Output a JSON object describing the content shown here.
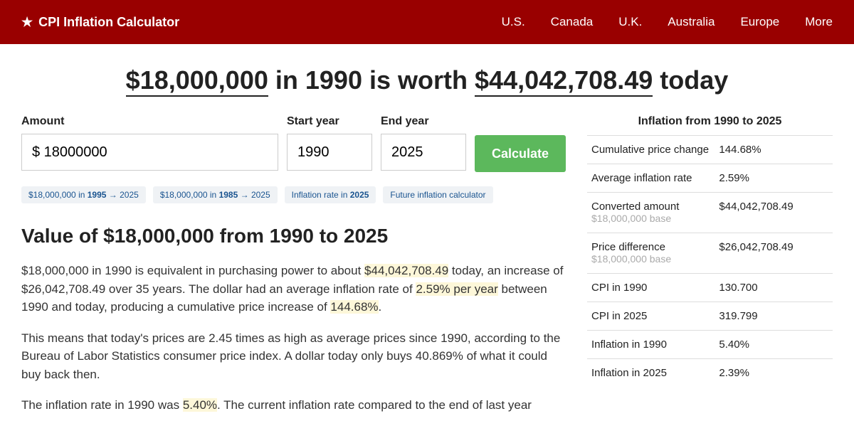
{
  "header": {
    "logo_text": "CPI Inflation Calculator",
    "nav": [
      "U.S.",
      "Canada",
      "U.K.",
      "Australia",
      "Europe",
      "More"
    ]
  },
  "title": {
    "amount_from": "$18,000,000",
    "year_from": "in 1990",
    "middle": "is worth",
    "amount_to": "$44,042,708.49",
    "suffix": "today"
  },
  "form": {
    "amount_label": "Amount",
    "amount_value": "$ 18000000",
    "start_label": "Start year",
    "start_value": "1990",
    "end_label": "End year",
    "end_value": "2025",
    "button": "Calculate"
  },
  "chips": {
    "c1_pre": "$18,000,000 in ",
    "c1_bold": "1995",
    "c1_post": " → 2025",
    "c2_pre": "$18,000,000 in ",
    "c2_bold": "1985",
    "c2_post": " → 2025",
    "c3_pre": "Inflation rate in ",
    "c3_bold": "2025",
    "c4": "Future inflation calculator"
  },
  "section": {
    "heading": "Value of $18,000,000 from 1990 to 2025",
    "p1_a": "$18,000,000 in 1990 is equivalent in purchasing power to about ",
    "p1_hl1": "$44,042,708.49",
    "p1_b": " today, an increase of $26,042,708.49 over 35 years. The dollar had an average inflation rate of ",
    "p1_hl2": "2.59% per year",
    "p1_c": " between 1990 and today, producing a cumulative price increase of ",
    "p1_hl3": "144.68%",
    "p1_d": ".",
    "p2": "This means that today's prices are 2.45 times as high as average prices since 1990, according to the Bureau of Labor Statistics consumer price index. A dollar today only buys 40.869% of what it could buy back then.",
    "p3_a": "The inflation rate in 1990 was ",
    "p3_hl1": "5.40%",
    "p3_b": ". The current inflation rate compared to the end of last year"
  },
  "sidebar": {
    "title": "Inflation from 1990 to 2025",
    "rows": [
      {
        "label": "Cumulative price change",
        "sub": "",
        "value": "144.68%"
      },
      {
        "label": "Average inflation rate",
        "sub": "",
        "value": "2.59%"
      },
      {
        "label": "Converted amount",
        "sub": "$18,000,000 base",
        "value": "$44,042,708.49"
      },
      {
        "label": "Price difference",
        "sub": "$18,000,000 base",
        "value": "$26,042,708.49"
      },
      {
        "label": "CPI in 1990",
        "sub": "",
        "value": "130.700"
      },
      {
        "label": "CPI in 2025",
        "sub": "",
        "value": "319.799"
      },
      {
        "label": "Inflation in 1990",
        "sub": "",
        "value": "5.40%"
      },
      {
        "label": "Inflation in 2025",
        "sub": "",
        "value": "2.39%"
      }
    ]
  },
  "colors": {
    "header_bg": "#990000",
    "button_bg": "#5cb85c",
    "highlight_bg": "#fdf7d9",
    "chip_bg": "#eff2f5",
    "link_color": "#1a5490"
  }
}
